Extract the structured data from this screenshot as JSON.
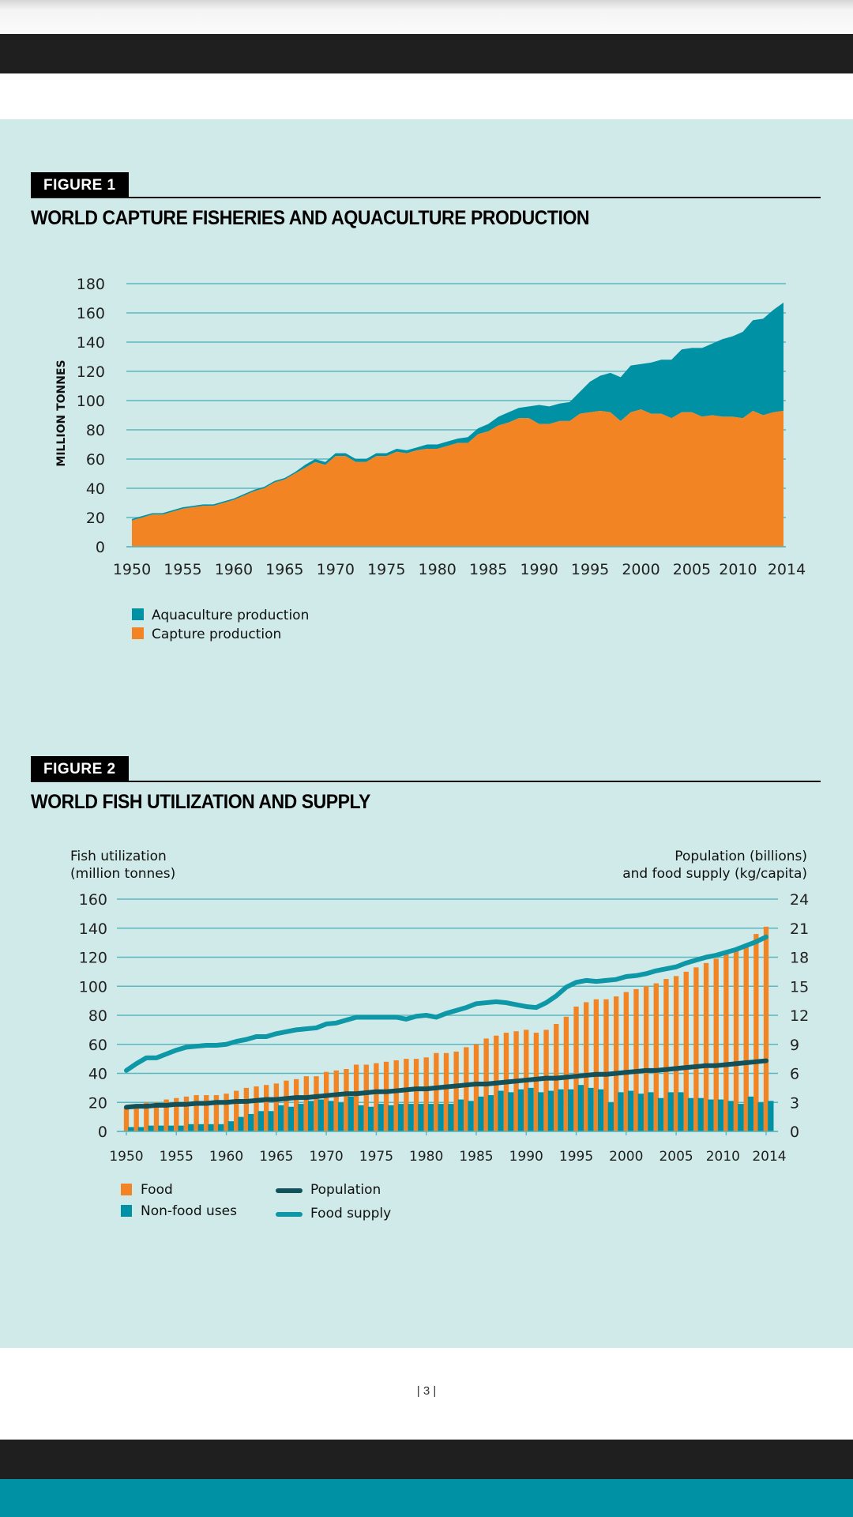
{
  "page": {
    "page_number": "| 3 |"
  },
  "figure1": {
    "label": "FIGURE 1",
    "title": "WORLD CAPTURE FISHERIES AND AQUACULTURE PRODUCTION"
  },
  "figure2": {
    "label": "FIGURE 2",
    "title": "WORLD FISH UTILIZATION AND SUPPLY"
  },
  "colors": {
    "background": "#cfeae8",
    "capture": "#f28423",
    "aquaculture": "#0091a4",
    "grid": "#5bb7bf",
    "population": "#12505a",
    "food_supply": "#0e97a6"
  },
  "chart_data": [
    {
      "type": "area",
      "title": "WORLD CAPTURE FISHERIES AND AQUACULTURE PRODUCTION",
      "xlabel": "",
      "ylabel": "MILLION TONNES",
      "ylim": [
        0,
        180
      ],
      "yticks": [
        0,
        20,
        40,
        60,
        80,
        100,
        120,
        140,
        160,
        180
      ],
      "xticks": [
        "1950",
        "1955",
        "1960",
        "1965",
        "1970",
        "1975",
        "1980",
        "1985",
        "1990",
        "1995",
        "2000",
        "2005",
        "2010",
        "2014"
      ],
      "grid": true,
      "stacked": true,
      "legend": "bottom-left",
      "x": [
        1950,
        1951,
        1952,
        1953,
        1954,
        1955,
        1956,
        1957,
        1958,
        1959,
        1960,
        1961,
        1962,
        1963,
        1964,
        1965,
        1966,
        1967,
        1968,
        1969,
        1970,
        1971,
        1972,
        1973,
        1974,
        1975,
        1976,
        1977,
        1978,
        1979,
        1980,
        1981,
        1982,
        1983,
        1984,
        1985,
        1986,
        1987,
        1988,
        1989,
        1990,
        1991,
        1992,
        1993,
        1994,
        1995,
        1996,
        1997,
        1998,
        1999,
        2000,
        2001,
        2002,
        2003,
        2004,
        2005,
        2006,
        2007,
        2008,
        2009,
        2010,
        2011,
        2012,
        2013,
        2014
      ],
      "series": [
        {
          "name": "Capture production",
          "values": [
            18,
            20,
            22,
            22,
            24,
            26,
            27,
            28,
            28,
            30,
            32,
            35,
            38,
            40,
            44,
            46,
            50,
            54,
            58,
            56,
            62,
            62,
            58,
            58,
            62,
            62,
            65,
            64,
            66,
            67,
            67,
            69,
            71,
            71,
            77,
            79,
            83,
            85,
            88,
            88,
            84,
            84,
            86,
            86,
            91,
            92,
            93,
            92,
            86,
            92,
            94,
            91,
            91,
            88,
            92,
            92,
            89,
            90,
            89,
            89,
            88,
            93,
            90,
            92,
            93
          ]
        },
        {
          "name": "Aquaculture production",
          "values": [
            1,
            1,
            1,
            1,
            1,
            1,
            1,
            1,
            1,
            1,
            1,
            1,
            1,
            1,
            1,
            1,
            1,
            2,
            2,
            2,
            2,
            2,
            2,
            2,
            2,
            2,
            2,
            2,
            2,
            3,
            3,
            3,
            3,
            4,
            4,
            5,
            6,
            7,
            7,
            8,
            13,
            12,
            12,
            13,
            15,
            21,
            24,
            27,
            30,
            32,
            31,
            35,
            37,
            40,
            43,
            44,
            47,
            49,
            53,
            55,
            59,
            62,
            66,
            70,
            74
          ]
        }
      ]
    },
    {
      "type": "bar",
      "title": "WORLD FISH UTILIZATION AND SUPPLY",
      "ylabel": "Fish utilization (million tonnes)",
      "y2label": "Population (billions) and food supply (kg/capita)",
      "ylim": [
        0,
        160
      ],
      "y2lim": [
        0,
        24
      ],
      "yticks": [
        0,
        20,
        40,
        60,
        80,
        100,
        120,
        140,
        160
      ],
      "y2ticks": [
        0,
        3,
        6,
        9,
        12,
        15,
        18,
        21,
        24
      ],
      "xticks": [
        "1950",
        "1955",
        "1960",
        "1965",
        "1970",
        "1975",
        "1980",
        "1985",
        "1990",
        "1995",
        "2000",
        "2005",
        "2010",
        "2014"
      ],
      "grid": true,
      "legend": "bottom-left",
      "x": [
        1950,
        1951,
        1952,
        1953,
        1954,
        1955,
        1956,
        1957,
        1958,
        1959,
        1960,
        1961,
        1962,
        1963,
        1964,
        1965,
        1966,
        1967,
        1968,
        1969,
        1970,
        1971,
        1972,
        1973,
        1974,
        1975,
        1976,
        1977,
        1978,
        1979,
        1980,
        1981,
        1982,
        1983,
        1984,
        1985,
        1986,
        1987,
        1988,
        1989,
        1990,
        1991,
        1992,
        1993,
        1994,
        1995,
        1996,
        1997,
        1998,
        1999,
        2000,
        2001,
        2002,
        2003,
        2004,
        2005,
        2006,
        2007,
        2008,
        2009,
        2010,
        2011,
        2012,
        2013,
        2014
      ],
      "series": [
        {
          "name": "Food",
          "kind": "bar",
          "axis": "left",
          "values": [
            17,
            17,
            20,
            20,
            22,
            23,
            24,
            25,
            25,
            25,
            26,
            28,
            30,
            31,
            32,
            33,
            35,
            36,
            38,
            38,
            41,
            42,
            43,
            46,
            46,
            47,
            48,
            49,
            50,
            50,
            51,
            54,
            54,
            55,
            58,
            60,
            64,
            66,
            68,
            69,
            70,
            68,
            70,
            74,
            79,
            86,
            89,
            91,
            91,
            93,
            96,
            98,
            100,
            102,
            105,
            107,
            110,
            113,
            116,
            119,
            122,
            126,
            129,
            136,
            141
          ]
        },
        {
          "name": "Non-food uses",
          "kind": "bar",
          "axis": "left",
          "values": [
            3,
            3,
            4,
            4,
            4,
            4,
            5,
            5,
            5,
            5,
            7,
            10,
            12,
            14,
            14,
            18,
            17,
            19,
            21,
            22,
            21,
            20,
            24,
            18,
            17,
            19,
            18,
            19,
            19,
            19,
            19,
            19,
            19,
            22,
            21,
            24,
            25,
            28,
            27,
            29,
            30,
            27,
            28,
            29,
            29,
            32,
            30,
            29,
            20,
            27,
            28,
            26,
            27,
            23,
            27,
            27,
            23,
            23,
            22,
            22,
            21,
            19,
            24,
            20,
            21
          ]
        },
        {
          "name": "Population",
          "kind": "line",
          "axis": "right",
          "values": [
            2.5,
            2.6,
            2.6,
            2.7,
            2.7,
            2.8,
            2.8,
            2.9,
            2.9,
            3.0,
            3.0,
            3.1,
            3.1,
            3.2,
            3.3,
            3.3,
            3.4,
            3.5,
            3.5,
            3.6,
            3.7,
            3.8,
            3.9,
            3.9,
            4.0,
            4.1,
            4.1,
            4.2,
            4.3,
            4.4,
            4.4,
            4.5,
            4.6,
            4.7,
            4.8,
            4.9,
            4.9,
            5.0,
            5.1,
            5.2,
            5.3,
            5.4,
            5.5,
            5.5,
            5.6,
            5.7,
            5.8,
            5.9,
            5.9,
            6.0,
            6.1,
            6.2,
            6.3,
            6.3,
            6.4,
            6.5,
            6.6,
            6.7,
            6.8,
            6.8,
            6.9,
            7.0,
            7.1,
            7.2,
            7.3
          ]
        },
        {
          "name": "Food supply",
          "kind": "line",
          "axis": "right",
          "values": [
            6.3,
            7.0,
            7.6,
            7.6,
            8.0,
            8.4,
            8.7,
            8.8,
            8.9,
            8.9,
            9.0,
            9.3,
            9.5,
            9.8,
            9.8,
            10.1,
            10.3,
            10.5,
            10.6,
            10.7,
            11.1,
            11.2,
            11.5,
            11.8,
            11.8,
            11.8,
            11.8,
            11.8,
            11.6,
            11.9,
            12.0,
            11.8,
            12.2,
            12.5,
            12.8,
            13.2,
            13.3,
            13.4,
            13.3,
            13.1,
            12.9,
            12.8,
            13.3,
            14.0,
            14.9,
            15.4,
            15.6,
            15.5,
            15.6,
            15.7,
            16.0,
            16.1,
            16.3,
            16.6,
            16.8,
            17.0,
            17.4,
            17.7,
            18.0,
            18.2,
            18.5,
            18.8,
            19.2,
            19.6,
            20.1
          ]
        }
      ]
    }
  ],
  "legend1": {
    "items": [
      {
        "label": "Aquaculture production",
        "color": "#0091a4"
      },
      {
        "label": "Capture production",
        "color": "#f28423"
      }
    ]
  },
  "legend2": {
    "items": [
      {
        "label": "Food",
        "color": "#f28423",
        "kind": "box"
      },
      {
        "label": "Non-food uses",
        "color": "#0091a4",
        "kind": "box"
      },
      {
        "label": "Population",
        "color": "#12505a",
        "kind": "line"
      },
      {
        "label": "Food supply",
        "color": "#0e97a6",
        "kind": "line"
      }
    ]
  },
  "axis_titles": {
    "fig1_y": "MILLION TONNES",
    "fig2_left_line1": "Fish utilization",
    "fig2_left_line2": "(million tonnes)",
    "fig2_right_line1": "Population (billions)",
    "fig2_right_line2": "and food supply (kg/capita)"
  }
}
